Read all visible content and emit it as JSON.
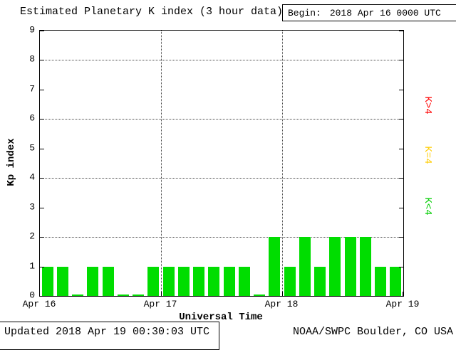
{
  "chart_data": {
    "type": "bar",
    "title": "Estimated Planetary K index (3 hour data)",
    "begin_label": "Begin:",
    "begin_value": "2018 Apr 16 0000 UTC",
    "xlabel": "Universal Time",
    "ylabel": "Kp index",
    "ylim": [
      0,
      9
    ],
    "yticks": [
      0,
      1,
      2,
      3,
      4,
      5,
      6,
      7,
      8,
      9
    ],
    "gridlines_y": [
      2,
      4,
      6,
      8
    ],
    "x_day_labels": [
      "Apr 16",
      "Apr 17",
      "Apr 18",
      "Apr 19"
    ],
    "values": [
      1,
      1,
      0,
      1,
      1,
      0,
      0,
      1,
      1,
      1,
      1,
      1,
      1,
      1,
      0,
      2,
      1,
      2,
      1,
      2,
      2,
      2,
      1,
      1
    ],
    "bar_color": "#00dd00",
    "grid_on": true,
    "legend_position": "right",
    "legend": [
      {
        "label": "K>4",
        "color": "#ff0000"
      },
      {
        "label": "K=4",
        "color": "#ffcc00"
      },
      {
        "label": "K<4",
        "color": "#00cc00"
      }
    ]
  },
  "footer": {
    "updated": "Updated 2018 Apr 19 00:30:03 UTC",
    "source": "NOAA/SWPC Boulder, CO USA"
  }
}
